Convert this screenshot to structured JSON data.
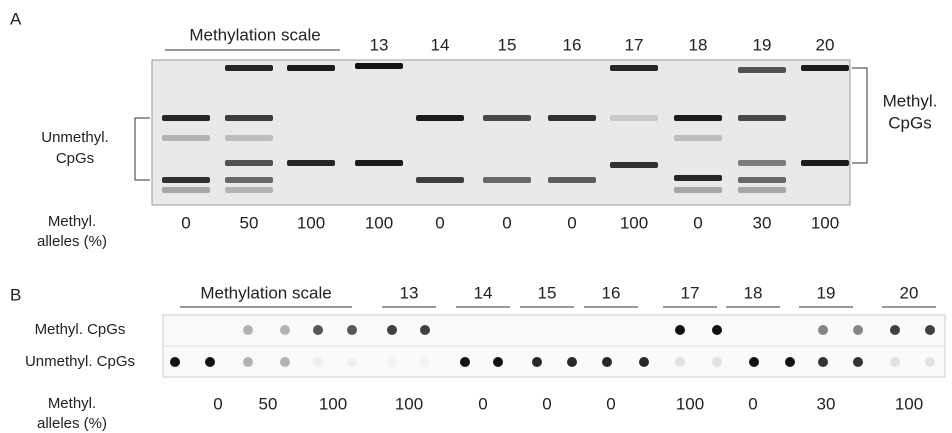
{
  "panels": [
    {
      "label": "A",
      "scale_title": "Methylation scale",
      "samples": [
        "13",
        "14",
        "15",
        "16",
        "17",
        "18",
        "19",
        "20"
      ],
      "left_bracket": [
        "Unmethyl.",
        "CpGs"
      ],
      "right_bracket": [
        "Methyl.",
        "CpGs"
      ],
      "row_title": [
        "Methyl.",
        "alleles (%)"
      ],
      "percentages": [
        0,
        50,
        100,
        100,
        0,
        0,
        0,
        100,
        0,
        30,
        100
      ]
    },
    {
      "label": "B",
      "scale_title": "Methylation scale",
      "samples": [
        "13",
        "14",
        "15",
        "16",
        "17",
        "18",
        "19",
        "20"
      ],
      "rows": [
        "Methyl. CpGs",
        "Unmethyl. CpGs"
      ],
      "row_title": [
        "Methyl.",
        "alleles (%)"
      ],
      "percentages": [
        0,
        50,
        100,
        100,
        0,
        0,
        0,
        100,
        0,
        30,
        100
      ]
    }
  ]
}
